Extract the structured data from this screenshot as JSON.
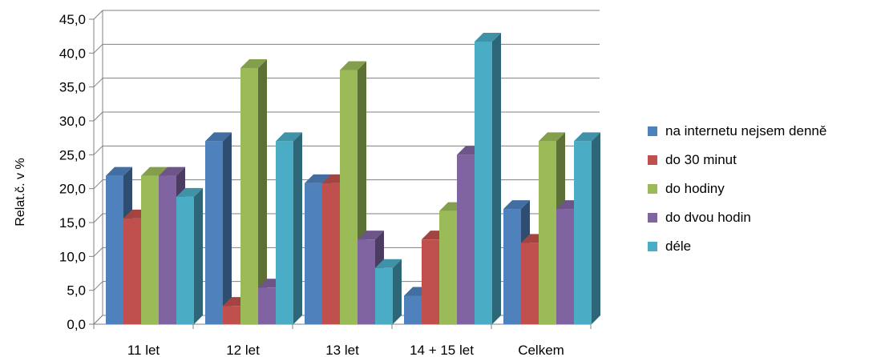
{
  "chart_data": {
    "type": "bar",
    "ylabel": "Relat.č. v %",
    "xlabel": "",
    "ylim": [
      0,
      45
    ],
    "yticks": [
      "0,0",
      "5,0",
      "10,0",
      "15,0",
      "20,0",
      "25,0",
      "30,0",
      "35,0",
      "40,0",
      "45,0"
    ],
    "categories": [
      "11 let",
      "12 let",
      "13 let",
      "14 + 15 let",
      "Celkem"
    ],
    "legend_position": "right",
    "grid": true,
    "series": [
      {
        "name": "na internetu nejsem denně",
        "color": "#4F81BD",
        "values": [
          21.9,
          27.0,
          20.8,
          4.2,
          17.0
        ]
      },
      {
        "name": "do 30 minut",
        "color": "#C0504D",
        "values": [
          15.6,
          2.7,
          20.8,
          12.5,
          12.0
        ]
      },
      {
        "name": "do hodiny",
        "color": "#9BBB59",
        "values": [
          21.9,
          37.8,
          37.5,
          16.7,
          27.0
        ]
      },
      {
        "name": "do dvou hodin",
        "color": "#8064A2",
        "values": [
          21.9,
          5.4,
          12.5,
          25.0,
          17.0
        ]
      },
      {
        "name": "déle",
        "color": "#4BACC6",
        "values": [
          18.8,
          27.0,
          8.3,
          41.7,
          27.0
        ]
      }
    ]
  }
}
